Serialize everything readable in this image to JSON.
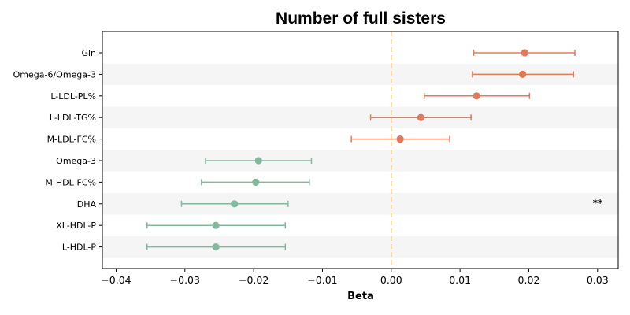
{
  "chart_data": {
    "type": "forest",
    "title": "Number of full sisters",
    "xlabel": "Beta",
    "xlim": [
      -0.042,
      0.033
    ],
    "xticks": [
      -0.04,
      -0.03,
      -0.02,
      -0.01,
      0.0,
      0.01,
      0.02,
      0.03
    ],
    "xtick_labels": [
      "−0.04",
      "−0.03",
      "−0.02",
      "−0.01",
      "0.00",
      "0.01",
      "0.02",
      "0.03"
    ],
    "reference_line": 0.0,
    "reference_line_color": "#f2c27a",
    "positive_color": "#e07b5a",
    "negative_color": "#82b99d",
    "stripe_color": "#f5f5f5",
    "points": [
      {
        "label": "Gln",
        "beta": 0.0194,
        "ci_low": 0.012,
        "ci_high": 0.0267,
        "sig": ""
      },
      {
        "label": "Omega-6/Omega-3",
        "beta": 0.0191,
        "ci_low": 0.0118,
        "ci_high": 0.0265,
        "sig": ""
      },
      {
        "label": "L-LDL-PL%",
        "beta": 0.0124,
        "ci_low": 0.0048,
        "ci_high": 0.0201,
        "sig": ""
      },
      {
        "label": "L-LDL-TG%",
        "beta": 0.0043,
        "ci_low": -0.003,
        "ci_high": 0.0116,
        "sig": ""
      },
      {
        "label": "M-LDL-FC%",
        "beta": 0.0013,
        "ci_low": -0.0058,
        "ci_high": 0.0085,
        "sig": ""
      },
      {
        "label": "Omega-3",
        "beta": -0.0193,
        "ci_low": -0.027,
        "ci_high": -0.0116,
        "sig": ""
      },
      {
        "label": "M-HDL-FC%",
        "beta": -0.0197,
        "ci_low": -0.0276,
        "ci_high": -0.0119,
        "sig": ""
      },
      {
        "label": "DHA",
        "beta": -0.0228,
        "ci_low": -0.0305,
        "ci_high": -0.015,
        "sig": "**"
      },
      {
        "label": "XL-HDL-P",
        "beta": -0.0255,
        "ci_low": -0.0355,
        "ci_high": -0.0154,
        "sig": ""
      },
      {
        "label": "L-HDL-P",
        "beta": -0.0255,
        "ci_low": -0.0355,
        "ci_high": -0.0154,
        "sig": ""
      }
    ]
  }
}
